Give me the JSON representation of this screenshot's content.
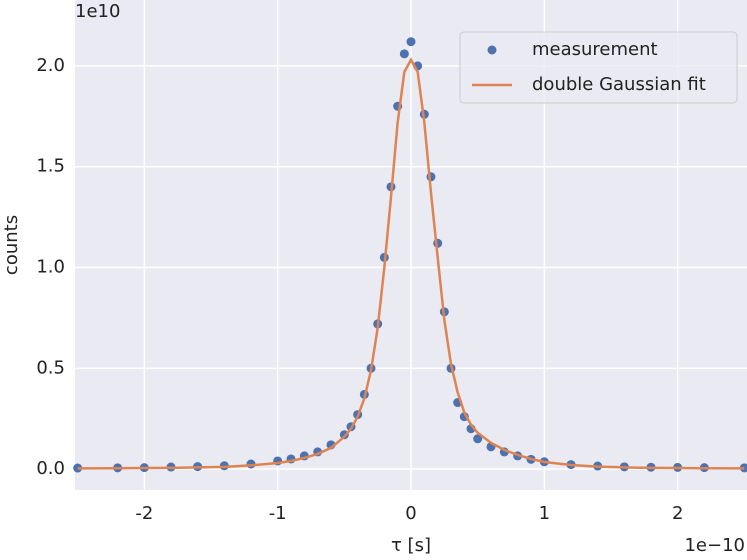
{
  "chart_data": {
    "type": "scatter",
    "x_label": "τ [s]",
    "y_label": "counts",
    "x_offset_label": "1e−10",
    "y_offset_label": "1e10",
    "xlim": [
      -2.52,
      2.52
    ],
    "ylim": [
      -0.104,
      2.327
    ],
    "xticks": [
      -2,
      -1,
      0,
      1,
      2
    ],
    "yticks": [
      {
        "value": 0,
        "label": "0.0"
      },
      0.5,
      {
        "value": 1,
        "label": "1.0"
      },
      1.5,
      {
        "value": 2,
        "label": "2.0"
      }
    ],
    "grid": true,
    "legend": "upper right",
    "x": [
      -2.5,
      -2.2,
      -2.0,
      -1.8,
      -1.6,
      -1.4,
      -1.2,
      -1.0,
      -0.9,
      -0.8,
      -0.7,
      -0.6,
      -0.5,
      -0.45,
      -0.4,
      -0.35,
      -0.3,
      -0.25,
      -0.2,
      -0.15,
      -0.1,
      -0.05,
      0,
      0.05,
      0.1,
      0.15,
      0.2,
      0.25,
      0.3,
      0.35,
      0.4,
      0.45,
      0.5,
      0.6,
      0.7,
      0.8,
      0.9,
      1.0,
      1.2,
      1.4,
      1.6,
      1.8,
      2.0,
      2.2,
      2.5
    ],
    "series": [
      {
        "name": "measurement",
        "kind": "scatter",
        "color": "#4c72b0",
        "values": [
          0.005,
          0.006,
          0.007,
          0.01,
          0.012,
          0.016,
          0.025,
          0.04,
          0.05,
          0.065,
          0.085,
          0.12,
          0.17,
          0.21,
          0.27,
          0.37,
          0.5,
          0.72,
          1.05,
          1.4,
          1.8,
          2.06,
          2.12,
          2.0,
          1.76,
          1.45,
          1.12,
          0.78,
          0.5,
          0.33,
          0.26,
          0.2,
          0.15,
          0.11,
          0.085,
          0.065,
          0.048,
          0.036,
          0.022,
          0.015,
          0.011,
          0.009,
          0.008,
          0.007,
          0.006
        ]
      },
      {
        "name": "double Gaussian fit",
        "kind": "line",
        "color": "#dd8452",
        "values": [
          0.003,
          0.004,
          0.005,
          0.006,
          0.008,
          0.011,
          0.018,
          0.03,
          0.04,
          0.055,
          0.075,
          0.105,
          0.16,
          0.2,
          0.26,
          0.35,
          0.49,
          0.7,
          1.0,
          1.35,
          1.72,
          1.97,
          2.03,
          1.97,
          1.72,
          1.37,
          1.05,
          0.74,
          0.52,
          0.38,
          0.28,
          0.22,
          0.18,
          0.13,
          0.095,
          0.07,
          0.05,
          0.035,
          0.02,
          0.012,
          0.008,
          0.006,
          0.005,
          0.004,
          0.003
        ]
      }
    ]
  }
}
